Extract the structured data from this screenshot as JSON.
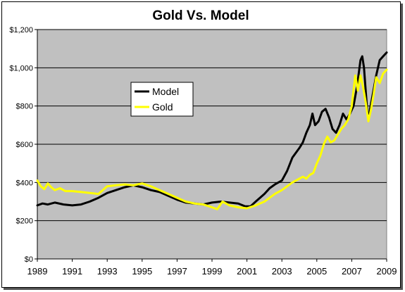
{
  "chart_data": {
    "type": "line",
    "title": "Gold Vs. Model",
    "xlabel": "",
    "ylabel": "",
    "xlim": [
      1989,
      2009
    ],
    "ylim": [
      0,
      1200
    ],
    "grid": "horizontal",
    "legend_position": "center-left",
    "x_tick_labels": [
      "1989",
      "1991",
      "1993",
      "1995",
      "1997",
      "1999",
      "2001",
      "2003",
      "2005",
      "2007",
      "2009"
    ],
    "y_ticks": [
      0,
      200,
      400,
      600,
      800,
      1000,
      1200
    ],
    "y_tick_labels": [
      "$0",
      "$200",
      "$400",
      "$600",
      "$800",
      "$1,000",
      "$1,200"
    ],
    "colors": {
      "plot_background": "#c0c0c0",
      "model": "#000000",
      "gold": "#ffff00",
      "gridline": "#000000"
    },
    "series": [
      {
        "name": "Model",
        "x": [
          1989,
          1989.3,
          1989.6,
          1990,
          1990.5,
          1991,
          1991.5,
          1992,
          1992.5,
          1993,
          1993.5,
          1994,
          1994.5,
          1995,
          1995.5,
          1996,
          1996.5,
          1997,
          1997.5,
          1998,
          1998.5,
          1999,
          1999.5,
          2000,
          2000.5,
          2000.9,
          2001.2,
          2001.5,
          2002,
          2002.3,
          2002.6,
          2003,
          2003.3,
          2003.6,
          2004,
          2004.2,
          2004.4,
          2004.6,
          2004.75,
          2004.9,
          2005.1,
          2005.3,
          2005.5,
          2005.7,
          2005.9,
          2006.1,
          2006.3,
          2006.5,
          2006.7,
          2006.9,
          2007.1,
          2007.3,
          2007.5,
          2007.6,
          2007.7,
          2007.8,
          2007.9,
          2008.0,
          2008.2,
          2008.4,
          2008.6,
          2008.8,
          2009.0
        ],
        "y": [
          280,
          290,
          285,
          295,
          285,
          280,
          285,
          300,
          320,
          345,
          360,
          375,
          385,
          375,
          360,
          350,
          330,
          310,
          295,
          290,
          285,
          295,
          300,
          295,
          290,
          275,
          275,
          300,
          340,
          370,
          390,
          410,
          460,
          530,
          580,
          610,
          660,
          700,
          760,
          700,
          720,
          770,
          785,
          740,
          680,
          660,
          700,
          760,
          730,
          760,
          800,
          900,
          1040,
          1060,
          1000,
          880,
          760,
          760,
          860,
          960,
          1040,
          1060,
          1080
        ]
      },
      {
        "name": "Gold",
        "x": [
          1989,
          1989.2,
          1989.4,
          1989.6,
          1989.8,
          1990,
          1990.3,
          1990.6,
          1991,
          1991.5,
          1992,
          1992.5,
          1993,
          1993.5,
          1994,
          1994.5,
          1995,
          1995.5,
          1996,
          1996.5,
          1997,
          1997.5,
          1998,
          1998.5,
          1999,
          1999.3,
          1999.6,
          2000,
          2000.5,
          2001,
          2001.5,
          2002,
          2002.3,
          2002.6,
          2003,
          2003.3,
          2003.6,
          2004,
          2004.2,
          2004.4,
          2004.6,
          2004.8,
          2005,
          2005.2,
          2005.4,
          2005.6,
          2005.8,
          2006,
          2006.2,
          2006.4,
          2006.6,
          2006.8,
          2007.0,
          2007.2,
          2007.35,
          2007.5,
          2007.65,
          2007.8,
          2007.95,
          2008.1,
          2008.25,
          2008.4,
          2008.6,
          2008.8,
          2009.0
        ],
        "y": [
          410,
          380,
          365,
          395,
          375,
          360,
          370,
          355,
          355,
          350,
          345,
          340,
          380,
          385,
          390,
          385,
          395,
          380,
          360,
          340,
          320,
          300,
          290,
          285,
          270,
          260,
          300,
          280,
          270,
          265,
          280,
          300,
          320,
          340,
          360,
          380,
          400,
          420,
          430,
          420,
          440,
          450,
          500,
          540,
          600,
          640,
          610,
          620,
          650,
          680,
          700,
          730,
          800,
          960,
          880,
          960,
          900,
          820,
          720,
          780,
          860,
          950,
          920,
          970,
          990
        ]
      }
    ]
  }
}
